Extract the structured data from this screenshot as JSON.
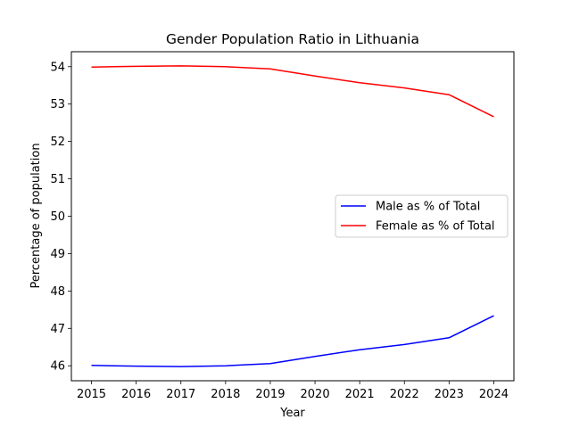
{
  "chart_data": {
    "type": "line",
    "title": "Gender Population Ratio in Lithuania",
    "xlabel": "Year",
    "ylabel": "Percentage of population",
    "x": [
      2015,
      2016,
      2017,
      2018,
      2019,
      2020,
      2021,
      2022,
      2023,
      2024
    ],
    "xticks": [
      2015,
      2016,
      2017,
      2018,
      2019,
      2020,
      2021,
      2022,
      2023,
      2024
    ],
    "yticks": [
      46,
      47,
      48,
      49,
      50,
      51,
      52,
      53,
      54
    ],
    "xlim": [
      2014.55,
      2024.45
    ],
    "ylim": [
      45.6,
      54.4
    ],
    "grid": false,
    "legend_position": "center-right",
    "series": [
      {
        "name": "Male as % of Total",
        "color": "#0000ff",
        "values": [
          46.01,
          45.99,
          45.98,
          46.0,
          46.06,
          46.25,
          46.43,
          46.57,
          46.75,
          47.34
        ]
      },
      {
        "name": "Female as % of Total",
        "color": "#ff0000",
        "values": [
          53.99,
          54.01,
          54.02,
          54.0,
          53.94,
          53.75,
          53.57,
          53.43,
          53.25,
          52.66
        ]
      }
    ]
  }
}
